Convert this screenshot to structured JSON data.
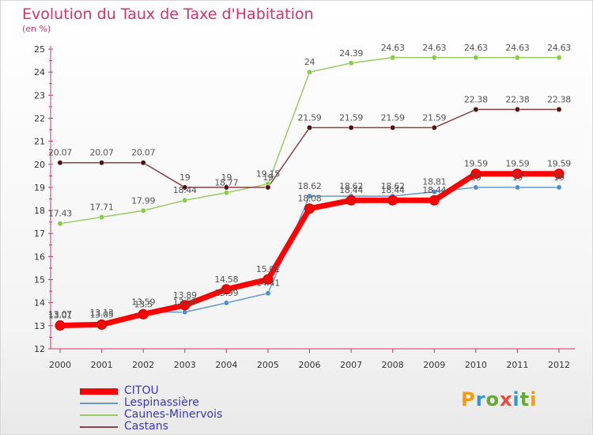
{
  "chart_data": {
    "type": "line",
    "title": "Evolution du Taux de Taxe d'Habitation",
    "subtitle": "(en %)",
    "x": [
      "2000",
      "2001",
      "2002",
      "2003",
      "2004",
      "2005",
      "2006",
      "2007",
      "2008",
      "2009",
      "2010",
      "2011",
      "2012"
    ],
    "ylim": [
      12,
      25
    ],
    "yticks": [
      12,
      13,
      14,
      15,
      16,
      17,
      18,
      19,
      20,
      21,
      22,
      23,
      24,
      25
    ],
    "grid": false,
    "legend_position": "bottom-left",
    "series": [
      {
        "name": "CITOU",
        "color": "#ff0000",
        "values": [
          13.01,
          13.05,
          13.5,
          13.89,
          14.58,
          15.01,
          18.08,
          18.44,
          18.44,
          18.44,
          19.59,
          19.59,
          19.59
        ],
        "labels": [
          "13.01",
          "13.05",
          "13.5",
          "13.89",
          "14.58",
          "15.01",
          "18.08",
          "18.44",
          "18.44",
          "18.44",
          "19.59",
          "19.59",
          "19.59"
        ]
      },
      {
        "name": "Lespinassière",
        "color": "#6699cc",
        "values": [
          13.07,
          13.13,
          13.59,
          13.59,
          13.99,
          14.41,
          18.62,
          18.62,
          18.62,
          18.81,
          19,
          19,
          19
        ],
        "labels": [
          "13.07",
          "13.13",
          "13.59",
          "13.59",
          "13.99",
          "14.41",
          "18.62",
          "18.62",
          "18.62",
          "18.81",
          "19",
          "19",
          "19"
        ]
      },
      {
        "name": "Caunes-Minervois",
        "color": "#99cc66",
        "values": [
          17.43,
          17.71,
          17.99,
          18.44,
          18.77,
          19.15,
          24,
          24.39,
          24.63,
          24.63,
          24.63,
          24.63,
          24.63
        ],
        "labels": [
          "17.43",
          "17.71",
          "17.99",
          "18.44",
          "18.77",
          "19.15",
          "24",
          "24.39",
          "24.63",
          "24.63",
          "24.63",
          "24.63",
          "24.63"
        ]
      },
      {
        "name": "Castans",
        "color": "#884444",
        "values": [
          20.07,
          20.07,
          20.07,
          19,
          19,
          19,
          21.59,
          21.59,
          21.59,
          21.59,
          22.38,
          22.38,
          22.38
        ],
        "labels": [
          "20.07",
          "20.07",
          "20.07",
          "19",
          "19",
          "19",
          "21.59",
          "21.59",
          "21.59",
          "21.59",
          "22.38",
          "22.38",
          "22.38"
        ]
      }
    ]
  },
  "legend": {
    "items": [
      {
        "label": "CITOU",
        "color": "#ff0000"
      },
      {
        "label": "Lespinassière",
        "color": "#6699cc"
      },
      {
        "label": "Caunes-Minervois",
        "color": "#99cc66"
      },
      {
        "label": "Castans",
        "color": "#884444"
      }
    ]
  },
  "logo": {
    "text": "Proxiti"
  }
}
